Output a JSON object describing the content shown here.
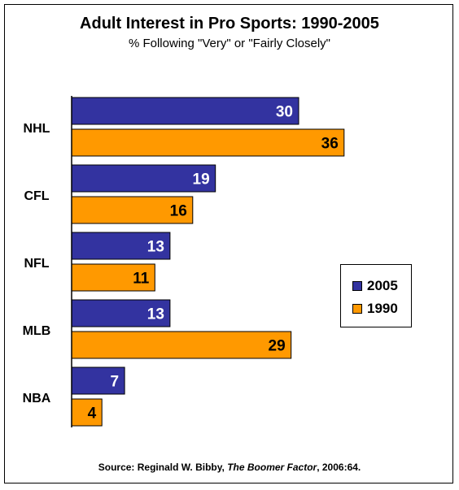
{
  "chart_data": {
    "type": "bar",
    "orientation": "horizontal",
    "title": "Adult Interest in Pro Sports: 1990-2005",
    "subtitle": "% Following \"Very\" or \"Fairly Closely\"",
    "categories": [
      "NHL",
      "CFL",
      "NFL",
      "MLB",
      "NBA"
    ],
    "series": [
      {
        "name": "2005",
        "values": [
          30,
          19,
          13,
          13,
          7
        ],
        "color": "#3333a0"
      },
      {
        "name": "1990",
        "values": [
          36,
          16,
          11,
          29,
          4
        ],
        "color": "#ff9900"
      }
    ],
    "xlim": [
      0,
      40
    ],
    "grid": false,
    "legend_placement": "right"
  },
  "source": {
    "prefix": "Source:  Reginald W. Bibby, ",
    "book": "The Boomer Factor",
    "suffix": ", 2006:64."
  }
}
